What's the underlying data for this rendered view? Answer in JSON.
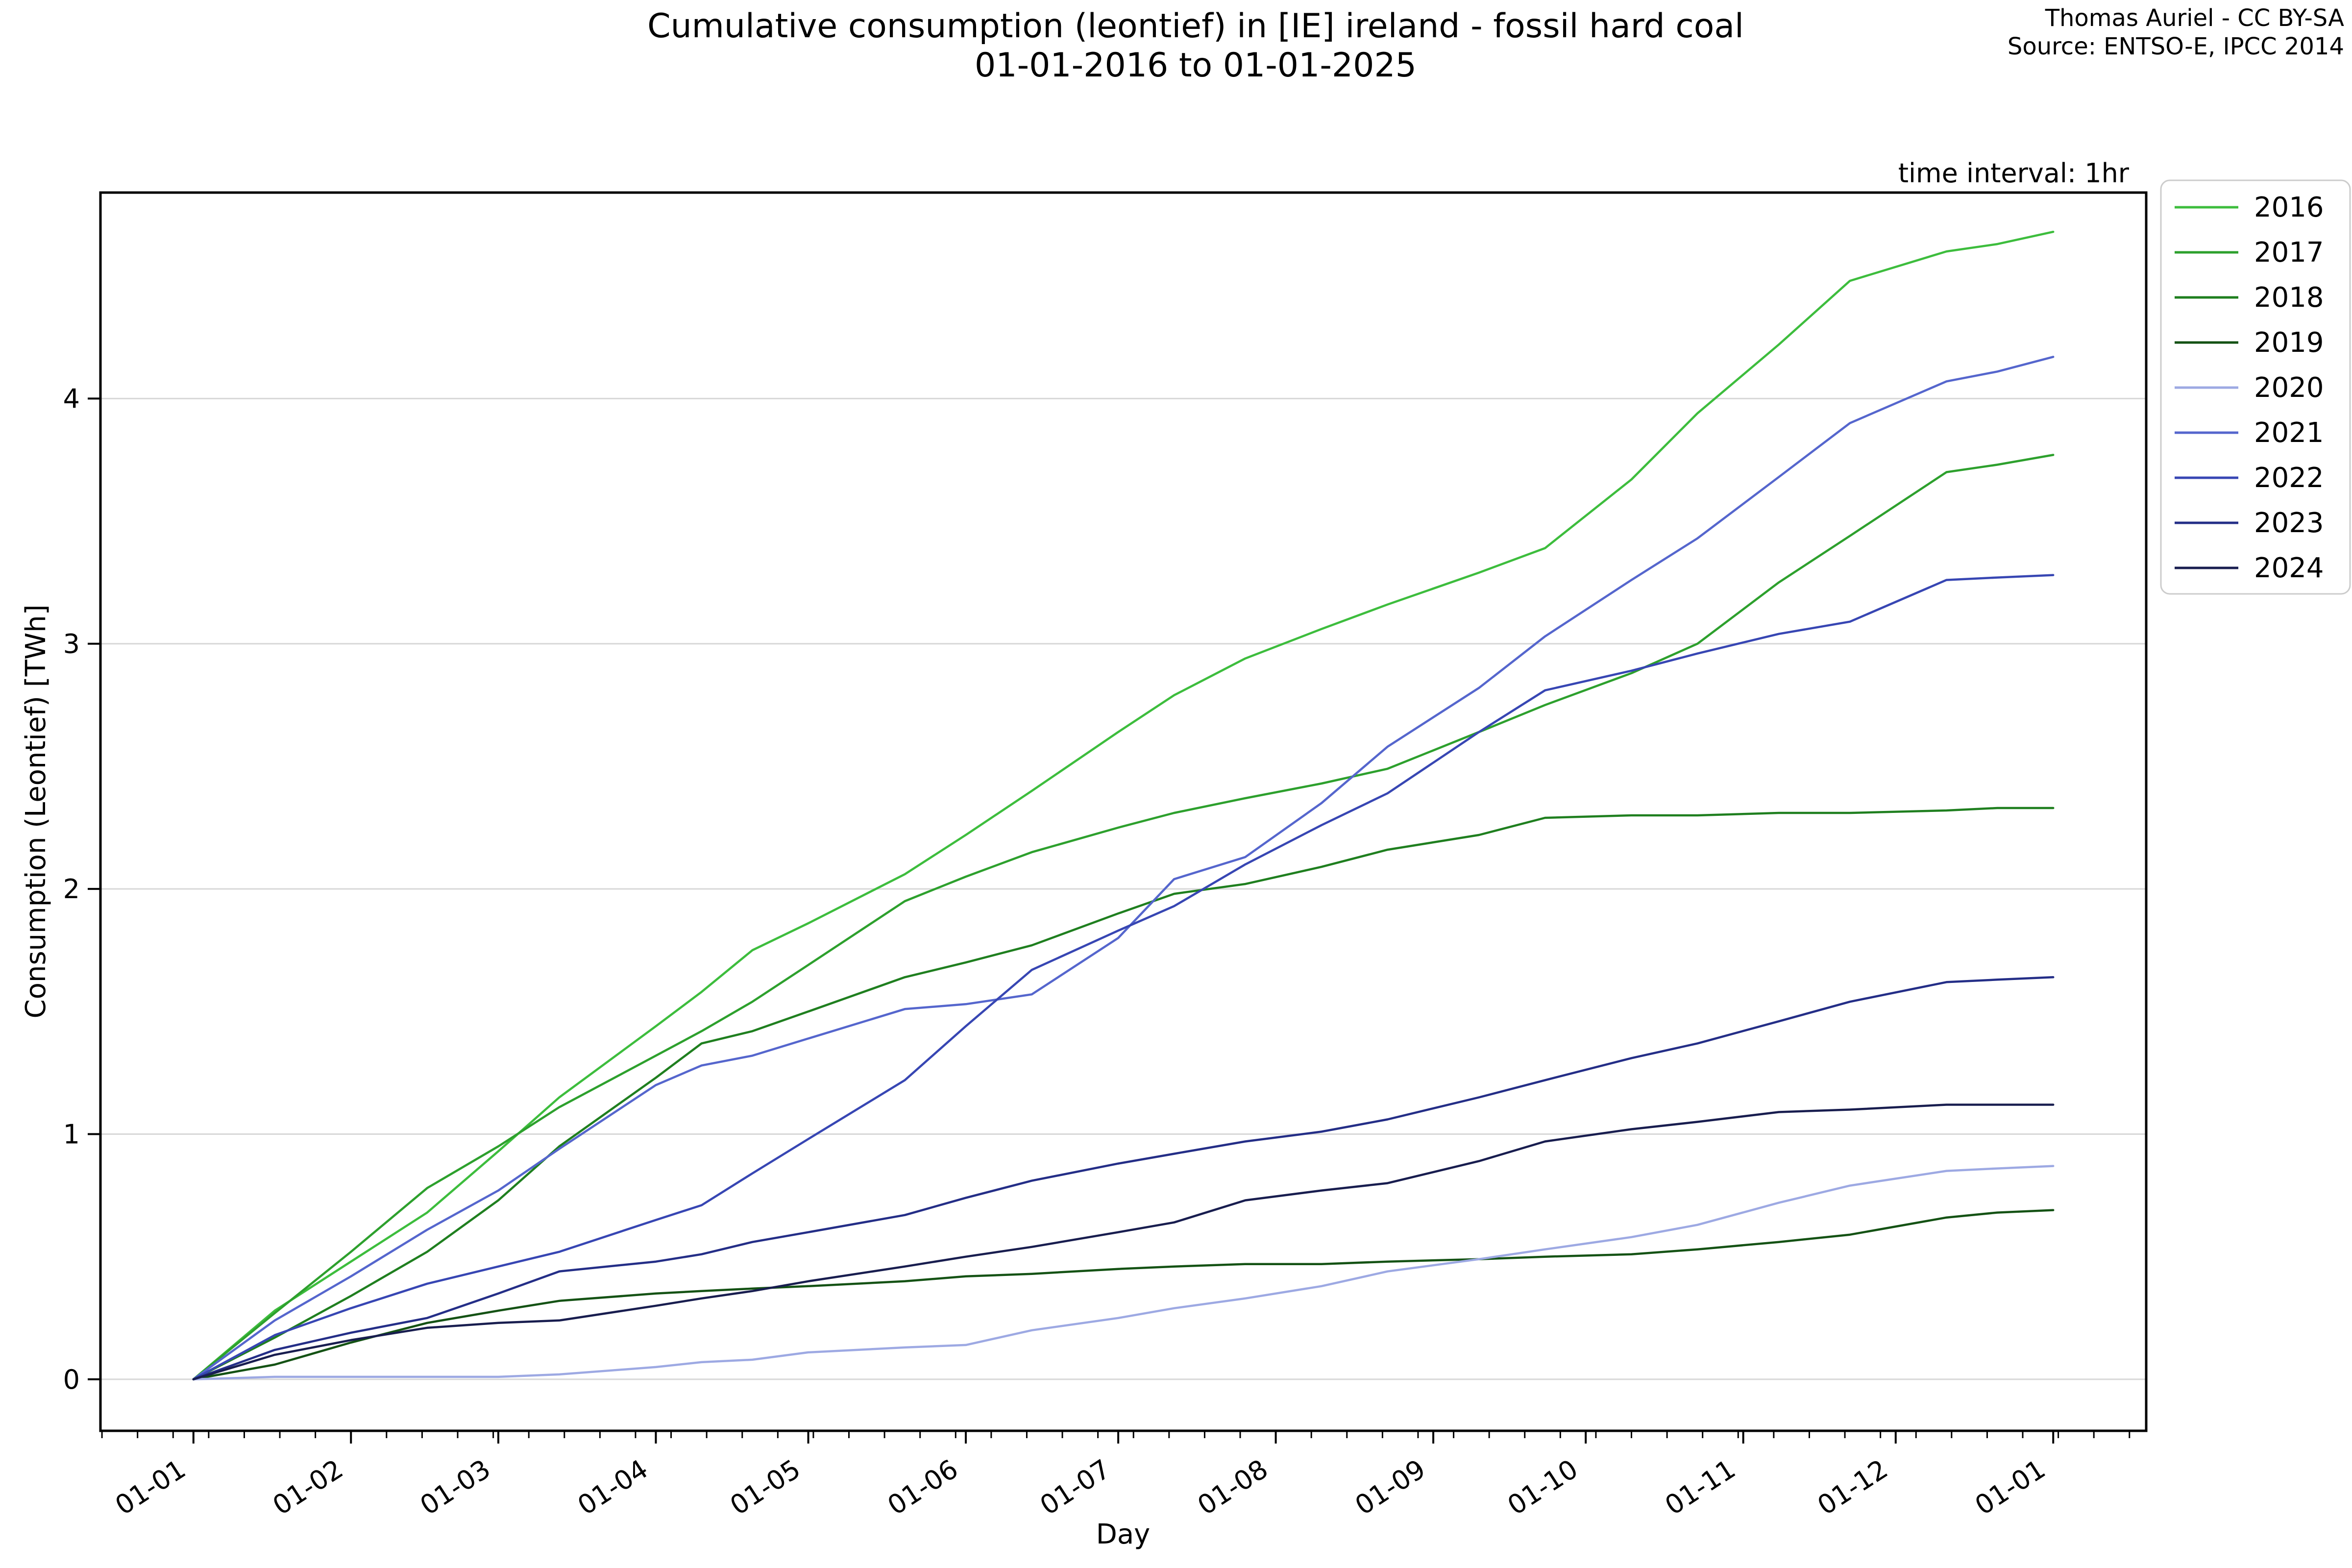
{
  "header": {
    "title_line1": "Cumulative consumption (leontief) in [IE] ireland - fossil hard coal",
    "title_line2": "01-01-2016 to 01-01-2025",
    "credit_line1": "Thomas Auriel - CC BY-SA",
    "credit_line2": "Source: ENTSO-E, IPCC 2014",
    "time_interval_note": "time interval: 1hr"
  },
  "chart_data": {
    "type": "line",
    "title": "Cumulative consumption (leontief) in [IE] ireland - fossil hard coal 01-01-2016 to 01-01-2025",
    "xlabel": "Day",
    "ylabel": "Consumption (Leontief) [TWh]",
    "grid": "horizontal",
    "legend_position": "upper right outside",
    "ylim": [
      -0.21,
      4.84
    ],
    "xlim_days": [
      -18.3,
      384.3
    ],
    "y_ticks": [
      0,
      1,
      2,
      3,
      4
    ],
    "x_tick_days": [
      0,
      31,
      60,
      91,
      121,
      152,
      182,
      213,
      244,
      274,
      305,
      335,
      366
    ],
    "x_tick_labels": [
      "01-01",
      "01-02",
      "01-03",
      "01-04",
      "01-05",
      "01-06",
      "01-07",
      "01-08",
      "01-09",
      "01-10",
      "01-11",
      "01-12",
      "01-01"
    ],
    "minor_tick_start_day": -18,
    "minor_tick_step_days": 7,
    "x": [
      0,
      16,
      31,
      46,
      60,
      72,
      91,
      100,
      110,
      121,
      140,
      152,
      165,
      182,
      193,
      207,
      222,
      235,
      253,
      266,
      283,
      296,
      312,
      326,
      345,
      355,
      366
    ],
    "series": [
      {
        "name": "2016",
        "color": "#3dbd3d",
        "values": [
          0,
          0.28,
          0.48,
          0.68,
          0.93,
          1.15,
          1.44,
          1.58,
          1.75,
          1.86,
          2.06,
          2.22,
          2.4,
          2.64,
          2.79,
          2.94,
          3.06,
          3.16,
          3.29,
          3.39,
          3.67,
          3.94,
          4.22,
          4.48,
          4.6,
          4.63,
          4.68
        ]
      },
      {
        "name": "2017",
        "color": "#2da02d",
        "values": [
          0,
          0.27,
          0.52,
          0.78,
          0.95,
          1.11,
          1.32,
          1.42,
          1.54,
          1.69,
          1.95,
          2.05,
          2.15,
          2.25,
          2.31,
          2.37,
          2.43,
          2.49,
          2.64,
          2.75,
          2.88,
          3.0,
          3.25,
          3.44,
          3.7,
          3.73,
          3.77
        ]
      },
      {
        "name": "2018",
        "color": "#1f7f1f",
        "values": [
          0,
          0.17,
          0.34,
          0.52,
          0.73,
          0.95,
          1.23,
          1.37,
          1.42,
          1.5,
          1.64,
          1.7,
          1.77,
          1.9,
          1.98,
          2.02,
          2.09,
          2.16,
          2.22,
          2.29,
          2.3,
          2.3,
          2.31,
          2.31,
          2.32,
          2.33,
          2.33
        ]
      },
      {
        "name": "2019",
        "color": "#145214",
        "values": [
          0,
          0.06,
          0.15,
          0.23,
          0.28,
          0.32,
          0.35,
          0.36,
          0.37,
          0.38,
          0.4,
          0.42,
          0.43,
          0.45,
          0.46,
          0.47,
          0.47,
          0.48,
          0.49,
          0.5,
          0.51,
          0.53,
          0.56,
          0.59,
          0.66,
          0.68,
          0.69
        ]
      },
      {
        "name": "2020",
        "color": "#9da9e3",
        "values": [
          0,
          0.01,
          0.01,
          0.01,
          0.01,
          0.02,
          0.05,
          0.07,
          0.08,
          0.11,
          0.13,
          0.14,
          0.2,
          0.25,
          0.29,
          0.33,
          0.38,
          0.44,
          0.49,
          0.53,
          0.58,
          0.63,
          0.72,
          0.79,
          0.85,
          0.86,
          0.87
        ]
      },
      {
        "name": "2021",
        "color": "#5566cd",
        "values": [
          0,
          0.24,
          0.42,
          0.61,
          0.77,
          0.94,
          1.2,
          1.28,
          1.32,
          1.39,
          1.51,
          1.53,
          1.57,
          1.8,
          2.04,
          2.13,
          2.35,
          2.58,
          2.82,
          3.03,
          3.26,
          3.43,
          3.68,
          3.9,
          4.07,
          4.11,
          4.17
        ]
      },
      {
        "name": "2022",
        "color": "#3746b3",
        "values": [
          0,
          0.18,
          0.29,
          0.39,
          0.46,
          0.52,
          0.65,
          0.71,
          0.84,
          0.98,
          1.22,
          1.44,
          1.67,
          1.83,
          1.93,
          2.1,
          2.26,
          2.39,
          2.64,
          2.81,
          2.89,
          2.96,
          3.04,
          3.09,
          3.26,
          3.27,
          3.28
        ]
      },
      {
        "name": "2023",
        "color": "#242e87",
        "values": [
          0,
          0.12,
          0.19,
          0.25,
          0.35,
          0.44,
          0.48,
          0.51,
          0.56,
          0.6,
          0.67,
          0.74,
          0.81,
          0.88,
          0.92,
          0.97,
          1.01,
          1.06,
          1.15,
          1.22,
          1.31,
          1.37,
          1.46,
          1.54,
          1.62,
          1.63,
          1.64
        ]
      },
      {
        "name": "2024",
        "color": "#181d4f",
        "values": [
          0,
          0.1,
          0.16,
          0.21,
          0.23,
          0.24,
          0.3,
          0.33,
          0.36,
          0.4,
          0.46,
          0.5,
          0.54,
          0.6,
          0.64,
          0.73,
          0.77,
          0.8,
          0.89,
          0.97,
          1.02,
          1.05,
          1.09,
          1.1,
          1.12,
          1.12,
          1.12
        ]
      }
    ]
  }
}
